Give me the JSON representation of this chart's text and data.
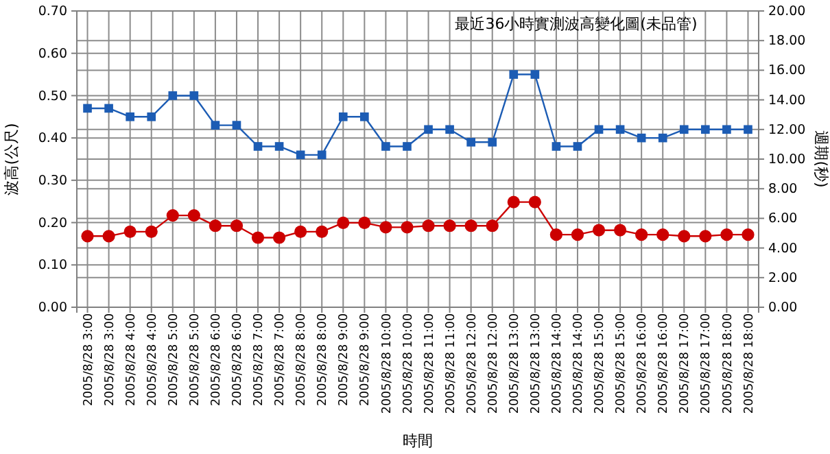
{
  "chart_data": {
    "type": "line",
    "title": "最近36小時實測波高變化圖(未品管)",
    "xlabel": "時間",
    "ylabel": "波高(公尺)",
    "y2label": "週期(秒)",
    "categories": [
      "2005/8/28 3:00",
      "2005/8/28 3:00",
      "2005/8/28 4:00",
      "2005/8/28 4:00",
      "2005/8/28 5:00",
      "2005/8/28 5:00",
      "2005/8/28 6:00",
      "2005/8/28 6:00",
      "2005/8/28 7:00",
      "2005/8/28 7:00",
      "2005/8/28 8:00",
      "2005/8/28 8:00",
      "2005/8/28 9:00",
      "2005/8/28 9:00",
      "2005/8/28 10:00",
      "2005/8/28 10:00",
      "2005/8/28 11:00",
      "2005/8/28 11:00",
      "2005/8/28 12:00",
      "2005/8/28 12:00",
      "2005/8/28 13:00",
      "2005/8/28 13:00",
      "2005/8/28 14:00",
      "2005/8/28 14:00",
      "2005/8/28 15:00",
      "2005/8/28 15:00",
      "2005/8/28 16:00",
      "2005/8/28 16:00",
      "2005/8/28 17:00",
      "2005/8/28 17:00",
      "2005/8/28 18:00",
      "2005/8/28 18:00"
    ],
    "series": [
      {
        "color": "#1c5cb4",
        "marker": "square",
        "values": [
          0.47,
          0.47,
          0.45,
          0.45,
          0.5,
          0.5,
          0.43,
          0.43,
          0.38,
          0.38,
          0.36,
          0.36,
          0.45,
          0.45,
          0.38,
          0.38,
          0.42,
          0.42,
          0.39,
          0.39,
          0.55,
          0.55,
          0.38,
          0.38,
          0.42,
          0.42,
          0.4,
          0.4,
          0.42,
          0.42,
          0.42,
          0.42
        ]
      },
      {
        "color": "#cc0000",
        "marker": "circle",
        "axis": "y2",
        "values": [
          4.8,
          4.8,
          5.1,
          5.1,
          6.2,
          6.2,
          5.5,
          5.5,
          4.7,
          4.7,
          5.1,
          5.1,
          5.7,
          5.7,
          5.4,
          5.4,
          5.5,
          5.5,
          5.5,
          5.5,
          7.1,
          7.1,
          4.9,
          4.9,
          5.2,
          5.2,
          4.9,
          4.9,
          4.8,
          4.8,
          4.9,
          4.9
        ]
      }
    ],
    "ylim": [
      0,
      0.7
    ],
    "yticks": [
      {
        "value": 0,
        "label": "0.00"
      },
      {
        "value": 0.1,
        "label": "0.10"
      },
      {
        "value": 0.2,
        "label": "0.20"
      },
      {
        "value": 0.3,
        "label": "0.30"
      },
      {
        "value": 0.4,
        "label": "0.40"
      },
      {
        "value": 0.5,
        "label": "0.50"
      },
      {
        "value": 0.6,
        "label": "0.60"
      },
      {
        "value": 0.7,
        "label": "0.70"
      }
    ],
    "y2lim": [
      0,
      20
    ],
    "y2ticks": [
      {
        "value": 0,
        "label": "0.00"
      },
      {
        "value": 2,
        "label": "2.00"
      },
      {
        "value": 4,
        "label": "4.00"
      },
      {
        "value": 6,
        "label": "6.00"
      },
      {
        "value": 8,
        "label": "8.00"
      },
      {
        "value": 10,
        "label": "10.00"
      },
      {
        "value": 12,
        "label": "12.00"
      },
      {
        "value": 14,
        "label": "14.00"
      },
      {
        "value": 16,
        "label": "16.00"
      },
      {
        "value": 18,
        "label": "18.00"
      },
      {
        "value": 20,
        "label": "20.00"
      }
    ],
    "grid": true,
    "line_style": "solid"
  }
}
